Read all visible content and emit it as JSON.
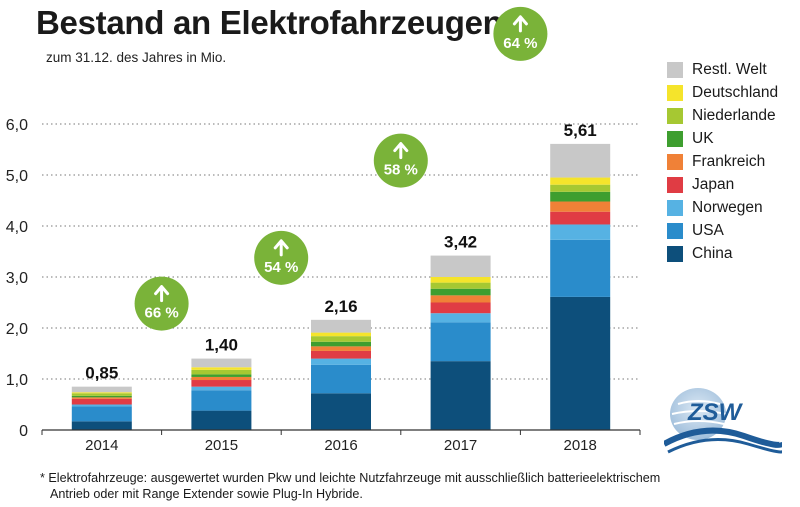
{
  "title": "Bestand an Elektrofahrzeugen*",
  "chart_data": {
    "type": "bar",
    "stacked": true,
    "title": "Bestand an Elektrofahrzeugen*",
    "subtitle": "zum 31.12. des Jahres in Mio.",
    "categories": [
      "2014",
      "2015",
      "2016",
      "2017",
      "2018"
    ],
    "ylim": [
      0,
      6
    ],
    "yticks": [
      0,
      1,
      2,
      3,
      4,
      5,
      6
    ],
    "ytick_labels": [
      "0",
      "1,0",
      "2,0",
      "3,0",
      "4,0",
      "5,0",
      "6,0"
    ],
    "grid": "horizontal dotted",
    "legend_position": "right",
    "totals": [
      "0,85",
      "1,40",
      "2,16",
      "3,42",
      "5,61"
    ],
    "growth": [
      {
        "between": [
          "2014",
          "2015"
        ],
        "label": "66 %"
      },
      {
        "between": [
          "2015",
          "2016"
        ],
        "label": "54 %"
      },
      {
        "between": [
          "2016",
          "2017"
        ],
        "label": "58 %"
      },
      {
        "between": [
          "2017",
          "2018"
        ],
        "label": "64 %"
      }
    ],
    "series": [
      {
        "name": "China",
        "color": "#0d4f7b",
        "values": [
          0.17,
          0.38,
          0.72,
          1.35,
          2.61
        ]
      },
      {
        "name": "USA",
        "color": "#2a8ccb",
        "values": [
          0.29,
          0.4,
          0.56,
          0.76,
          1.12
        ]
      },
      {
        "name": "Norwegen",
        "color": "#56b2e3",
        "values": [
          0.04,
          0.07,
          0.12,
          0.18,
          0.3
        ]
      },
      {
        "name": "Japan",
        "color": "#e03c44",
        "values": [
          0.11,
          0.13,
          0.15,
          0.21,
          0.25
        ]
      },
      {
        "name": "Frankreich",
        "color": "#f08137",
        "values": [
          0.03,
          0.06,
          0.09,
          0.14,
          0.2
        ]
      },
      {
        "name": "UK",
        "color": "#3e9e2f",
        "values": [
          0.03,
          0.05,
          0.09,
          0.13,
          0.19
        ]
      },
      {
        "name": "Niederlande",
        "color": "#a6c832",
        "values": [
          0.05,
          0.09,
          0.11,
          0.12,
          0.14
        ]
      },
      {
        "name": "Deutschland",
        "color": "#f5e42b",
        "values": [
          0.02,
          0.05,
          0.07,
          0.11,
          0.14
        ]
      },
      {
        "name": "Restl. Welt",
        "color": "#c8c8c8",
        "values": [
          0.11,
          0.17,
          0.25,
          0.42,
          0.66
        ]
      }
    ],
    "growth_color": "#7ab339"
  },
  "footnote": {
    "line1": "* Elektrofahrzeuge: ausgewertet wurden Pkw und leichte Nutzfahrzeuge mit ausschließlich batterieelektrischem",
    "line2": "Antrieb oder mit Range Extender sowie Plug-In Hybride."
  },
  "logo": {
    "text": "ZSW",
    "icon": "zsw-logo"
  }
}
